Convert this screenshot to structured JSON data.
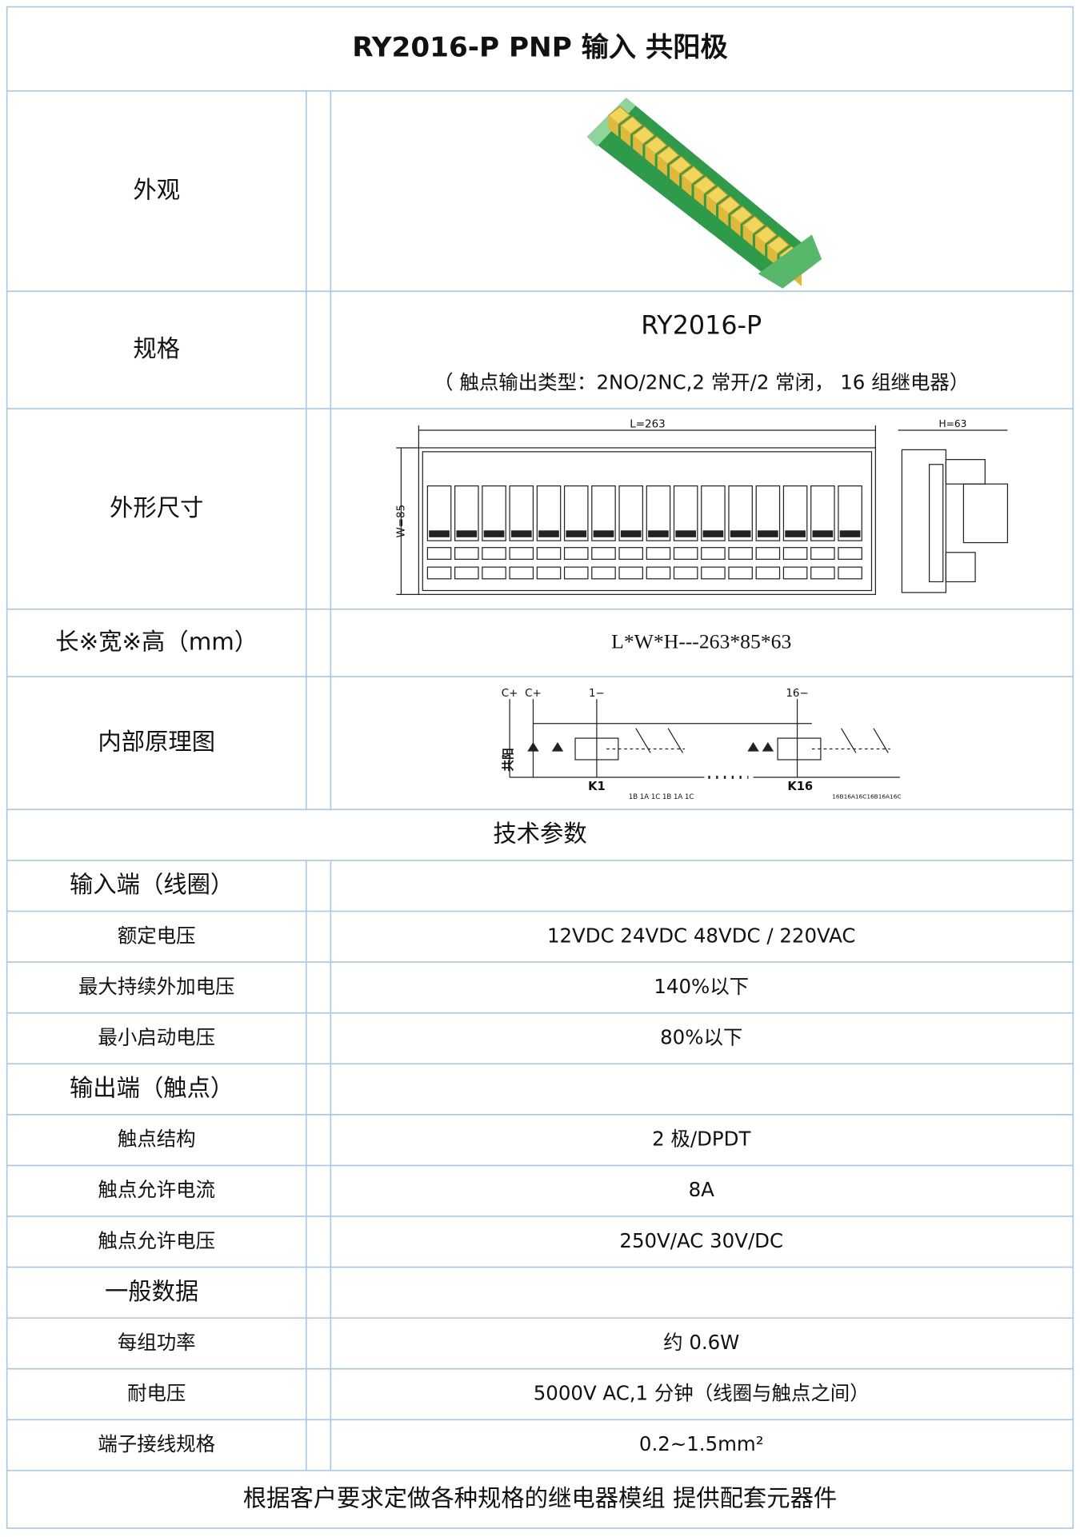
{
  "title": "RY2016-P   PNP 输入 共阳极",
  "rows": [
    {
      "label": "外观"
    },
    {
      "label": "规格",
      "value": "RY2016-P",
      "note": "（ 触点输出类型：2NO/2NC,2 常开/2 常闭， 16 组继电器）"
    },
    {
      "label": "外形尺寸",
      "drawing": {
        "length": "L=263",
        "width": "W=85",
        "height": "H=63"
      }
    },
    {
      "label": "长※宽※高（mm）",
      "value": "L*W*H---263*85*63"
    },
    {
      "label": "内部原理图",
      "schematic": {
        "supply": [
          "C+",
          "C+"
        ],
        "inputs": [
          "1−",
          "16−"
        ],
        "common": "共阳",
        "relays": [
          "K1",
          "K16"
        ],
        "contacts": [
          "1B 1A 1C 1B 1A 1C",
          "16B16A16C16B16A16C"
        ]
      }
    }
  ],
  "section": "技术参数",
  "groups": [
    {
      "label": "输入端（线圈）",
      "items": [
        {
          "label": "额定电压",
          "value": "12VDC 24VDC 48VDC / 220VAC"
        },
        {
          "label": "最大持续外加电压",
          "value": "140%以下"
        },
        {
          "label": "最小启动电压",
          "value": "80%以下"
        }
      ]
    },
    {
      "label": "输出端（触点）",
      "items": [
        {
          "label": "触点结构",
          "value": "2 极/DPDT"
        },
        {
          "label": "触点允许电流",
          "value": "8A"
        },
        {
          "label": "触点允许电压",
          "value": "250V/AC  30V/DC"
        }
      ]
    },
    {
      "label": "一般数据",
      "items": [
        {
          "label": "每组功率",
          "value": "约 0.6W"
        },
        {
          "label": "耐电压",
          "value": "5000V AC,1 分钟（线圈与触点之间）"
        },
        {
          "label": "端子接线规格",
          "value": "0.2~1.5mm²"
        }
      ]
    }
  ],
  "footer": "根据客户要求定做各种规格的继电器模组 提供配套元器件"
}
